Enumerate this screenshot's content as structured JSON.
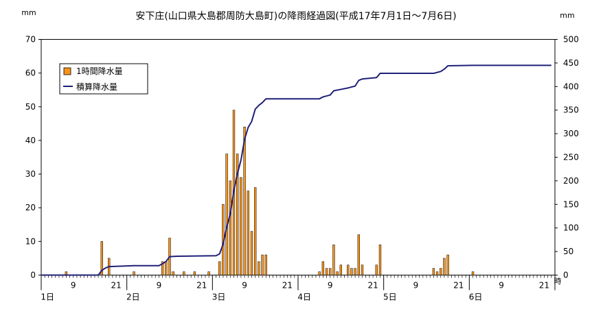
{
  "chart_data": {
    "type": "bar",
    "title": "安下庄(山口県大島郡周防大島町)の降雨経過図(平成17年7月1日～7月6日)",
    "y_left_unit": "mm",
    "y_right_unit": "mm",
    "x_unit": "時",
    "ylim_left": [
      0,
      70
    ],
    "ylim_right": [
      0,
      500
    ],
    "left_ticks": [
      0,
      10,
      20,
      30,
      40,
      50,
      60,
      70
    ],
    "right_ticks": [
      0,
      50,
      100,
      150,
      200,
      250,
      300,
      350,
      400,
      450,
      500
    ],
    "hour_ticks": [
      {
        "h": 9,
        "label": "9"
      },
      {
        "h": 21,
        "label": "21"
      },
      {
        "h": 33,
        "label": "9"
      },
      {
        "h": 45,
        "label": "21"
      },
      {
        "h": 57,
        "label": "9"
      },
      {
        "h": 69,
        "label": "21"
      },
      {
        "h": 81,
        "label": "9"
      },
      {
        "h": 93,
        "label": "21"
      },
      {
        "h": 105,
        "label": "9"
      },
      {
        "h": 117,
        "label": "21"
      },
      {
        "h": 129,
        "label": "9"
      },
      {
        "h": 141,
        "label": "21"
      }
    ],
    "day_labels": [
      {
        "h": 1,
        "label": "1日"
      },
      {
        "h": 25,
        "label": "2日"
      },
      {
        "h": 49,
        "label": "3日"
      },
      {
        "h": 73,
        "label": "4日"
      },
      {
        "h": 97,
        "label": "5日"
      },
      {
        "h": 121,
        "label": "6日"
      }
    ],
    "grid": false,
    "legend_position": "top-left",
    "series": [
      {
        "name": "1時間降水量",
        "type": "bar",
        "axis": "left",
        "color": "#f7941d",
        "points": [
          {
            "h": 7,
            "v": 1
          },
          {
            "h": 17,
            "v": 10
          },
          {
            "h": 19,
            "v": 5
          },
          {
            "h": 26,
            "v": 1
          },
          {
            "h": 34,
            "v": 4
          },
          {
            "h": 35,
            "v": 4
          },
          {
            "h": 36,
            "v": 11
          },
          {
            "h": 37,
            "v": 1
          },
          {
            "h": 40,
            "v": 1
          },
          {
            "h": 43,
            "v": 1
          },
          {
            "h": 47,
            "v": 1
          },
          {
            "h": 50,
            "v": 4
          },
          {
            "h": 51,
            "v": 21
          },
          {
            "h": 52,
            "v": 36
          },
          {
            "h": 53,
            "v": 28
          },
          {
            "h": 54,
            "v": 49
          },
          {
            "h": 55,
            "v": 36
          },
          {
            "h": 56,
            "v": 29
          },
          {
            "h": 57,
            "v": 44
          },
          {
            "h": 58,
            "v": 25
          },
          {
            "h": 59,
            "v": 13
          },
          {
            "h": 60,
            "v": 26
          },
          {
            "h": 61,
            "v": 4
          },
          {
            "h": 62,
            "v": 6
          },
          {
            "h": 63,
            "v": 6
          },
          {
            "h": 78,
            "v": 1
          },
          {
            "h": 79,
            "v": 4
          },
          {
            "h": 80,
            "v": 2
          },
          {
            "h": 81,
            "v": 2
          },
          {
            "h": 82,
            "v": 9
          },
          {
            "h": 83,
            "v": 1
          },
          {
            "h": 84,
            "v": 3
          },
          {
            "h": 86,
            "v": 3
          },
          {
            "h": 87,
            "v": 2
          },
          {
            "h": 88,
            "v": 2
          },
          {
            "h": 89,
            "v": 12
          },
          {
            "h": 90,
            "v": 3
          },
          {
            "h": 94,
            "v": 3
          },
          {
            "h": 95,
            "v": 9
          },
          {
            "h": 110,
            "v": 2
          },
          {
            "h": 111,
            "v": 1
          },
          {
            "h": 112,
            "v": 2
          },
          {
            "h": 113,
            "v": 5
          },
          {
            "h": 114,
            "v": 6
          },
          {
            "h": 121,
            "v": 1
          }
        ]
      },
      {
        "name": "積算降水量",
        "type": "line",
        "axis": "right",
        "color": "#1f1f78",
        "points": [
          {
            "h": 0,
            "v": 0
          },
          {
            "h": 16,
            "v": 0
          },
          {
            "h": 17,
            "v": 10
          },
          {
            "h": 18,
            "v": 15
          },
          {
            "h": 19,
            "v": 18
          },
          {
            "h": 26,
            "v": 20
          },
          {
            "h": 33,
            "v": 20
          },
          {
            "h": 34,
            "v": 24
          },
          {
            "h": 35,
            "v": 29
          },
          {
            "h": 36,
            "v": 39
          },
          {
            "h": 38,
            "v": 40
          },
          {
            "h": 49,
            "v": 41
          },
          {
            "h": 50,
            "v": 45
          },
          {
            "h": 51,
            "v": 66
          },
          {
            "h": 52,
            "v": 102
          },
          {
            "h": 53,
            "v": 130
          },
          {
            "h": 54,
            "v": 179
          },
          {
            "h": 55,
            "v": 215
          },
          {
            "h": 56,
            "v": 244
          },
          {
            "h": 57,
            "v": 288
          },
          {
            "h": 58,
            "v": 313
          },
          {
            "h": 59,
            "v": 326
          },
          {
            "h": 60,
            "v": 352
          },
          {
            "h": 61,
            "v": 360
          },
          {
            "h": 62,
            "v": 366
          },
          {
            "h": 63,
            "v": 374
          },
          {
            "h": 78,
            "v": 374
          },
          {
            "h": 79,
            "v": 378
          },
          {
            "h": 80,
            "v": 380
          },
          {
            "h": 81,
            "v": 382
          },
          {
            "h": 82,
            "v": 391
          },
          {
            "h": 84,
            "v": 394
          },
          {
            "h": 86,
            "v": 397
          },
          {
            "h": 88,
            "v": 401
          },
          {
            "h": 89,
            "v": 413
          },
          {
            "h": 90,
            "v": 416
          },
          {
            "h": 94,
            "v": 419
          },
          {
            "h": 95,
            "v": 428
          },
          {
            "h": 110,
            "v": 428
          },
          {
            "h": 112,
            "v": 432
          },
          {
            "h": 113,
            "v": 437
          },
          {
            "h": 114,
            "v": 444
          },
          {
            "h": 121,
            "v": 445
          },
          {
            "h": 143,
            "v": 445
          }
        ]
      }
    ]
  }
}
